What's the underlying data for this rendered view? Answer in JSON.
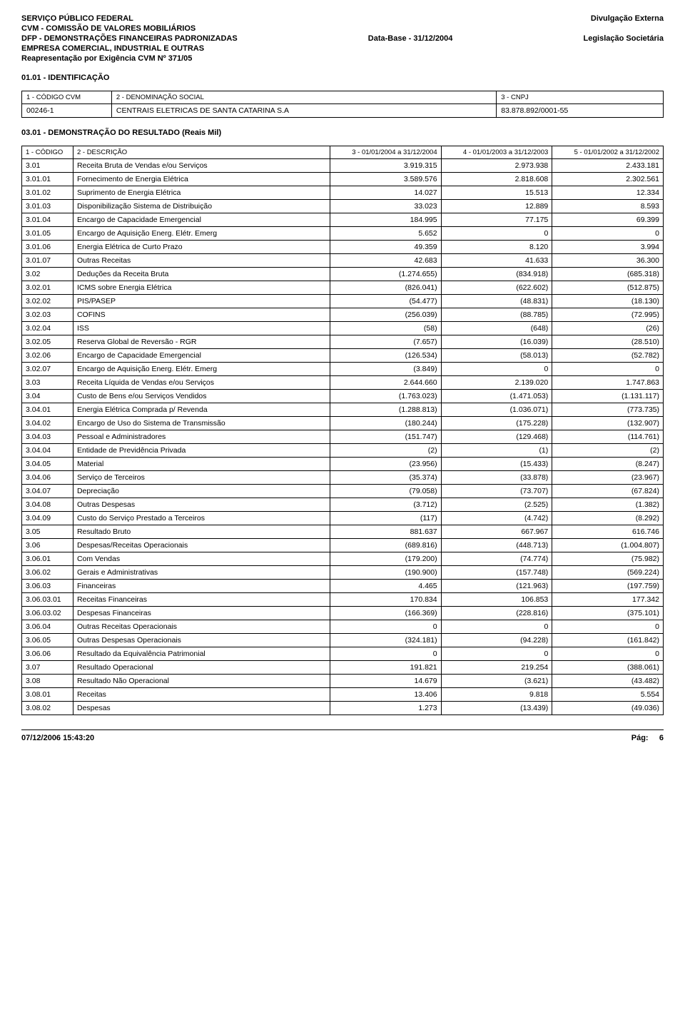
{
  "header": {
    "lines_left": [
      "SERVIÇO PÚBLICO FEDERAL",
      "CVM - COMISSÃO DE VALORES MOBILIÁRIOS",
      "DFP - DEMONSTRAÇÕES FINANCEIRAS PADRONIZADAS",
      "EMPRESA COMERCIAL, INDUSTRIAL E OUTRAS",
      "Reapresentação por Exigência CVM Nº 371/05"
    ],
    "lines_right": [
      "Divulgação Externa",
      "",
      "Legislação Societária",
      "",
      ""
    ],
    "lines_center": [
      "",
      "",
      "Data-Base - 31/12/2004",
      "",
      ""
    ]
  },
  "id_section": {
    "title": "01.01 - IDENTIFICAÇÃO",
    "labels": {
      "l1": "1 - CÓDIGO CVM",
      "l2": "2 - DENOMINAÇÃO SOCIAL",
      "l3": "3 - CNPJ"
    },
    "values": {
      "v1": "00246-1",
      "v2": "CENTRAIS ELETRICAS DE SANTA CATARINA S.A",
      "v3": "83.878.892/0001-55"
    }
  },
  "result_section": {
    "title": "03.01 - DEMONSTRAÇÃO DO RESULTADO (Reais Mil)",
    "headers": {
      "h1": "1 - CÓDIGO",
      "h2": "2 - DESCRIÇÃO",
      "h3": "3 - 01/01/2004 a 31/12/2004",
      "h4": "4 - 01/01/2003 a 31/12/2003",
      "h5": "5 - 01/01/2002 a 31/12/2002"
    },
    "rows": [
      {
        "c": "3.01",
        "d": "Receita Bruta de Vendas e/ou Serviços",
        "v1": "3.919.315",
        "v2": "2.973.938",
        "v3": "2.433.181"
      },
      {
        "c": "3.01.01",
        "d": "Fornecimento de Energia Elétrica",
        "v1": "3.589.576",
        "v2": "2.818.608",
        "v3": "2.302.561"
      },
      {
        "c": "3.01.02",
        "d": "Suprimento de Energia Elétrica",
        "v1": "14.027",
        "v2": "15.513",
        "v3": "12.334"
      },
      {
        "c": "3.01.03",
        "d": "Disponibilização Sistema de Distribuição",
        "v1": "33.023",
        "v2": "12.889",
        "v3": "8.593"
      },
      {
        "c": "3.01.04",
        "d": "Encargo de Capacidade Emergencial",
        "v1": "184.995",
        "v2": "77.175",
        "v3": "69.399"
      },
      {
        "c": "3.01.05",
        "d": "Encargo de Aquisição Energ. Elétr. Emerg",
        "v1": "5.652",
        "v2": "0",
        "v3": "0"
      },
      {
        "c": "3.01.06",
        "d": "Energia Elétrica de Curto Prazo",
        "v1": "49.359",
        "v2": "8.120",
        "v3": "3.994"
      },
      {
        "c": "3.01.07",
        "d": "Outras Receitas",
        "v1": "42.683",
        "v2": "41.633",
        "v3": "36.300"
      },
      {
        "c": "3.02",
        "d": "Deduções da Receita Bruta",
        "v1": "(1.274.655)",
        "v2": "(834.918)",
        "v3": "(685.318)"
      },
      {
        "c": "3.02.01",
        "d": "ICMS sobre Energia Elétrica",
        "v1": "(826.041)",
        "v2": "(622.602)",
        "v3": "(512.875)"
      },
      {
        "c": "3.02.02",
        "d": "PIS/PASEP",
        "v1": "(54.477)",
        "v2": "(48.831)",
        "v3": "(18.130)"
      },
      {
        "c": "3.02.03",
        "d": "COFINS",
        "v1": "(256.039)",
        "v2": "(88.785)",
        "v3": "(72.995)"
      },
      {
        "c": "3.02.04",
        "d": "ISS",
        "v1": "(58)",
        "v2": "(648)",
        "v3": "(26)"
      },
      {
        "c": "3.02.05",
        "d": "Reserva Global de Reversão - RGR",
        "v1": "(7.657)",
        "v2": "(16.039)",
        "v3": "(28.510)"
      },
      {
        "c": "3.02.06",
        "d": "Encargo de Capacidade Emergencial",
        "v1": "(126.534)",
        "v2": "(58.013)",
        "v3": "(52.782)"
      },
      {
        "c": "3.02.07",
        "d": "Encargo de Aquisição Energ. Elétr. Emerg",
        "v1": "(3.849)",
        "v2": "0",
        "v3": "0"
      },
      {
        "c": "3.03",
        "d": "Receita Líquida de Vendas e/ou Serviços",
        "v1": "2.644.660",
        "v2": "2.139.020",
        "v3": "1.747.863"
      },
      {
        "c": "3.04",
        "d": "Custo de Bens e/ou Serviços Vendidos",
        "v1": "(1.763.023)",
        "v2": "(1.471.053)",
        "v3": "(1.131.117)"
      },
      {
        "c": "3.04.01",
        "d": "Energia Elétrica Comprada p/ Revenda",
        "v1": "(1.288.813)",
        "v2": "(1.036.071)",
        "v3": "(773.735)"
      },
      {
        "c": "3.04.02",
        "d": "Encargo de Uso do Sistema de Transmissão",
        "v1": "(180.244)",
        "v2": "(175.228)",
        "v3": "(132.907)"
      },
      {
        "c": "3.04.03",
        "d": "Pessoal e Administradores",
        "v1": "(151.747)",
        "v2": "(129.468)",
        "v3": "(114.761)"
      },
      {
        "c": "3.04.04",
        "d": "Entidade de Previdência Privada",
        "v1": "(2)",
        "v2": "(1)",
        "v3": "(2)"
      },
      {
        "c": "3.04.05",
        "d": "Material",
        "v1": "(23.956)",
        "v2": "(15.433)",
        "v3": "(8.247)"
      },
      {
        "c": "3.04.06",
        "d": "Serviço de Terceiros",
        "v1": "(35.374)",
        "v2": "(33.878)",
        "v3": "(23.967)"
      },
      {
        "c": "3.04.07",
        "d": "Depreciação",
        "v1": "(79.058)",
        "v2": "(73.707)",
        "v3": "(67.824)"
      },
      {
        "c": "3.04.08",
        "d": "Outras Despesas",
        "v1": "(3.712)",
        "v2": "(2.525)",
        "v3": "(1.382)"
      },
      {
        "c": "3.04.09",
        "d": "Custo do Serviço Prestado a Terceiros",
        "v1": "(117)",
        "v2": "(4.742)",
        "v3": "(8.292)"
      },
      {
        "c": "3.05",
        "d": "Resultado Bruto",
        "v1": "881.637",
        "v2": "667.967",
        "v3": "616.746"
      },
      {
        "c": "3.06",
        "d": "Despesas/Receitas Operacionais",
        "v1": "(689.816)",
        "v2": "(448.713)",
        "v3": "(1.004.807)"
      },
      {
        "c": "3.06.01",
        "d": "Com Vendas",
        "v1": "(179.200)",
        "v2": "(74.774)",
        "v3": "(75.982)"
      },
      {
        "c": "3.06.02",
        "d": "Gerais e Administrativas",
        "v1": "(190.900)",
        "v2": "(157.748)",
        "v3": "(569.224)"
      },
      {
        "c": "3.06.03",
        "d": "Financeiras",
        "v1": "4.465",
        "v2": "(121.963)",
        "v3": "(197.759)"
      },
      {
        "c": "3.06.03.01",
        "d": "Receitas Financeiras",
        "v1": "170.834",
        "v2": "106.853",
        "v3": "177.342"
      },
      {
        "c": "3.06.03.02",
        "d": "Despesas Financeiras",
        "v1": "(166.369)",
        "v2": "(228.816)",
        "v3": "(375.101)"
      },
      {
        "c": "3.06.04",
        "d": "Outras Receitas Operacionais",
        "v1": "0",
        "v2": "0",
        "v3": "0"
      },
      {
        "c": "3.06.05",
        "d": "Outras Despesas Operacionais",
        "v1": "(324.181)",
        "v2": "(94.228)",
        "v3": "(161.842)"
      },
      {
        "c": "3.06.06",
        "d": "Resultado da Equivalência Patrimonial",
        "v1": "0",
        "v2": "0",
        "v3": "0"
      },
      {
        "c": "3.07",
        "d": "Resultado Operacional",
        "v1": "191.821",
        "v2": "219.254",
        "v3": "(388.061)"
      },
      {
        "c": "3.08",
        "d": "Resultado Não Operacional",
        "v1": "14.679",
        "v2": "(3.621)",
        "v3": "(43.482)"
      },
      {
        "c": "3.08.01",
        "d": "Receitas",
        "v1": "13.406",
        "v2": "9.818",
        "v3": "5.554"
      },
      {
        "c": "3.08.02",
        "d": "Despesas",
        "v1": "1.273",
        "v2": "(13.439)",
        "v3": "(49.036)"
      }
    ]
  },
  "footer": {
    "timestamp": "07/12/2006 15:43:20",
    "page_label": "Pág:",
    "page_num": "6"
  }
}
